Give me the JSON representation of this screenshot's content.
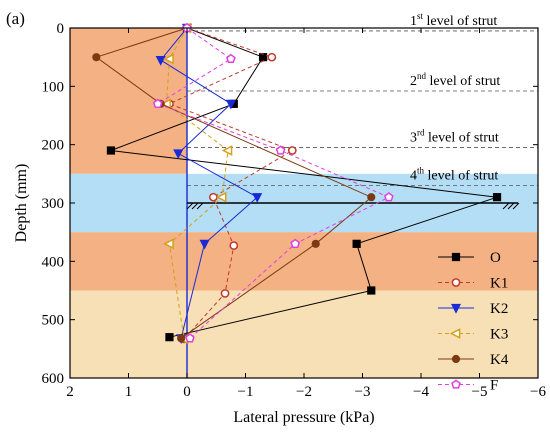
{
  "panel_label": "(a)",
  "chart_data": {
    "type": "line",
    "xlabel": "Lateral pressure (kPa)",
    "ylabel": "Depth (mm)",
    "xlim": [
      2,
      -6
    ],
    "ylim": [
      600,
      0
    ],
    "x_ticks": [
      2,
      1,
      0,
      -1,
      -2,
      -3,
      -4,
      -5,
      -6
    ],
    "x_tick_labels": [
      "2",
      "1",
      "0",
      "−1",
      "−2",
      "−3",
      "−4",
      "−5",
      "−6"
    ],
    "y_ticks": [
      0,
      100,
      200,
      300,
      400,
      500,
      600
    ],
    "y_tick_labels": [
      "0",
      "100",
      "200",
      "300",
      "400",
      "500",
      "600"
    ],
    "legend_position": "lower-right",
    "soil_layers": [
      {
        "from": 0,
        "to": 250,
        "color": "#f4b183",
        "x_right": 0
      },
      {
        "from": 250,
        "to": 350,
        "color": "#b4def5"
      },
      {
        "from": 350,
        "to": 450,
        "color": "#f4b183"
      },
      {
        "from": 450,
        "to": 600,
        "color": "#f7dfb6"
      }
    ],
    "excavation_level": 300,
    "strut_levels": [
      {
        "depth": 5,
        "ordinal": "1",
        "suffix": "st",
        "text": "level of strut"
      },
      {
        "depth": 108,
        "ordinal": "2",
        "suffix": "nd",
        "text": "level of strut"
      },
      {
        "depth": 205,
        "ordinal": "3",
        "suffix": "rd",
        "text": "level of strut"
      },
      {
        "depth": 270,
        "ordinal": "4",
        "suffix": "th",
        "text": "level of strut"
      }
    ],
    "series": [
      {
        "name": "O",
        "color": "#000000",
        "dash": "solid",
        "marker": "square-filled",
        "points": [
          [
            0,
            0
          ],
          [
            -1.3,
            50
          ],
          [
            -0.8,
            130
          ],
          [
            1.3,
            210
          ],
          [
            -5.3,
            290
          ],
          [
            -2.9,
            370
          ],
          [
            -3.15,
            450
          ],
          [
            0.3,
            530
          ]
        ]
      },
      {
        "name": "K1",
        "color": "#c0392b",
        "dash": "dashed",
        "marker": "circle-open",
        "points": [
          [
            0,
            0
          ],
          [
            -1.45,
            50
          ],
          [
            0.3,
            130
          ],
          [
            -1.8,
            210
          ],
          [
            -0.45,
            290
          ],
          [
            -0.8,
            373
          ],
          [
            -0.65,
            455
          ],
          [
            0.05,
            533
          ]
        ]
      },
      {
        "name": "K2",
        "color": "#1a2bd6",
        "dash": "solid",
        "marker": "triangle-down-filled",
        "points": [
          [
            0,
            0
          ],
          [
            0.45,
            55
          ],
          [
            -0.75,
            130
          ],
          [
            0.15,
            215
          ],
          [
            -1.2,
            290
          ],
          [
            -0.3,
            370
          ],
          [
            0.1,
            532
          ]
        ]
      },
      {
        "name": "K3",
        "color": "#d4a017",
        "dash": "dashed",
        "marker": "triangle-left-open",
        "points": [
          [
            0,
            0
          ],
          [
            0.3,
            53
          ],
          [
            0.35,
            130
          ],
          [
            -0.7,
            210
          ],
          [
            -0.6,
            290
          ],
          [
            0.3,
            370
          ],
          [
            0.05,
            533
          ]
        ]
      },
      {
        "name": "K4",
        "color": "#7b3a12",
        "dash": "solid",
        "marker": "circle-filled",
        "points": [
          [
            0,
            0
          ],
          [
            1.55,
            50
          ],
          [
            0.45,
            130
          ],
          [
            -3.15,
            290
          ],
          [
            -2.2,
            370
          ],
          [
            0.1,
            532
          ]
        ]
      },
      {
        "name": "F",
        "color": "#e040e0",
        "dash": "dashed",
        "marker": "pentagon-open",
        "points": [
          [
            0,
            0
          ],
          [
            -0.75,
            53
          ],
          [
            0.5,
            130
          ],
          [
            -1.6,
            210
          ],
          [
            -3.45,
            290
          ],
          [
            -1.85,
            370
          ],
          [
            -0.05,
            532
          ]
        ]
      }
    ]
  }
}
